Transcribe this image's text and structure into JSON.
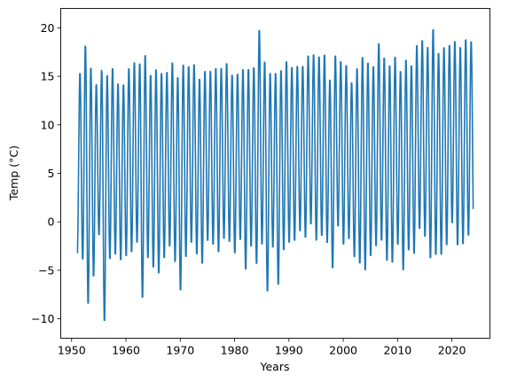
{
  "chart_data": {
    "type": "line",
    "title": "",
    "xlabel": "Years",
    "ylabel": "Temp (°C)",
    "xlim": [
      1948,
      2027
    ],
    "ylim": [
      -12,
      22
    ],
    "xticks": [
      1950,
      1960,
      1970,
      1980,
      1990,
      2000,
      2010,
      2020
    ],
    "xtick_labels": [
      "1950",
      "1960",
      "1970",
      "1980",
      "1990",
      "2000",
      "2010",
      "2020"
    ],
    "yticks": [
      -10,
      -5,
      0,
      5,
      10,
      15,
      20
    ],
    "ytick_labels": [
      "−10",
      "−5",
      "0",
      "5",
      "10",
      "15",
      "20"
    ],
    "grid": false,
    "line_color": "#1f77b4",
    "sampling": "monthly, January 1951 – December 2023",
    "series": [
      {
        "annual_max": [
          15.6,
          18.5,
          16.2,
          14.4,
          15.9,
          15.4,
          16.1,
          14.5,
          14.4,
          16.1,
          16.7,
          16.6,
          17.5,
          15.4,
          16.0,
          15.6,
          15.7,
          16.7,
          15.2,
          16.5,
          16.3,
          16.5,
          15.0,
          15.8,
          15.8,
          16.1,
          16.1,
          16.6,
          15.4,
          15.5,
          16.0,
          16.0,
          16.2,
          20.1,
          16.8,
          15.6,
          15.6,
          15.9,
          16.8,
          16.2,
          16.3,
          16.3,
          17.4,
          17.5,
          17.3,
          17.5,
          14.9,
          17.4,
          16.8,
          16.4,
          14.6,
          16.1,
          17.3,
          16.7,
          16.3,
          18.7,
          17.2,
          16.4,
          17.3,
          15.8,
          17.0,
          16.4,
          18.5,
          19.0,
          18.3,
          20.2,
          17.7,
          18.3,
          18.5,
          18.9,
          18.3,
          19.1,
          18.9
        ],
        "annual_min": [
          -3.5,
          -4.2,
          -8.8,
          -5.9,
          -1.6,
          -10.6,
          -4.1,
          -3.6,
          -4.2,
          -3.8,
          -3.4,
          -2.4,
          -8.2,
          -4.0,
          -5.0,
          -5.6,
          -4.0,
          -2.8,
          -4.4,
          -7.4,
          -3.9,
          -2.4,
          -3.6,
          -4.6,
          -2.2,
          -2.6,
          -3.4,
          -2.0,
          -2.3,
          -3.5,
          -2.1,
          -5.2,
          -2.8,
          -4.7,
          -2.6,
          -7.5,
          -2.9,
          -6.8,
          -3.2,
          -2.4,
          -2.2,
          -1.2,
          -1.9,
          -0.5,
          -2.2,
          -1.7,
          -2.4,
          -5.1,
          -0.7,
          -2.6,
          -2.0,
          -3.9,
          -4.6,
          -5.3,
          -3.8,
          -2.8,
          -2.2,
          -4.3,
          -4.5,
          -2.6,
          -5.3,
          -3.2,
          -3.6,
          -1.0,
          -1.8,
          -4.1,
          -3.7,
          -3.7,
          -2.7,
          -0.4,
          -2.7,
          -2.6,
          -1.7
        ]
      }
    ]
  }
}
